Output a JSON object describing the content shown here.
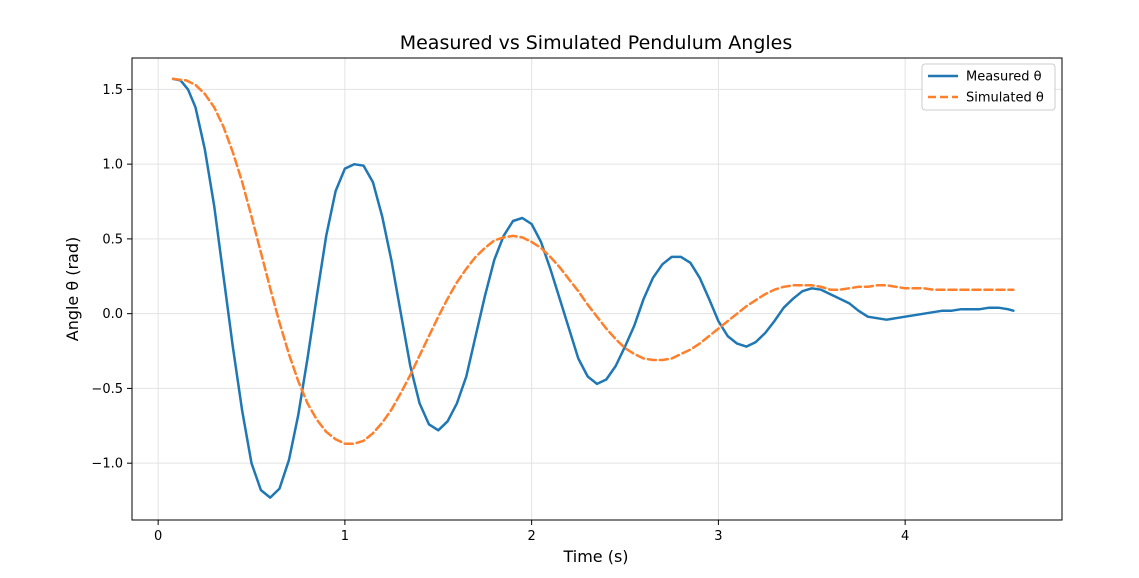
{
  "chart_data": {
    "type": "line",
    "title": "Measured vs Simulated Pendulum Angles",
    "xlabel": "Time (s)",
    "ylabel": "Angle θ (rad)",
    "xlim": [
      -0.14,
      4.84
    ],
    "ylim": [
      -1.38,
      1.71
    ],
    "xticks": [
      0,
      1,
      2,
      3,
      4
    ],
    "xtick_labels": [
      "0",
      "1",
      "2",
      "3",
      "4"
    ],
    "yticks": [
      -1.0,
      -0.5,
      0.0,
      0.5,
      1.0,
      1.5
    ],
    "ytick_labels": [
      "−1.0",
      "−0.5",
      "0.0",
      "0.5",
      "1.0",
      "1.5"
    ],
    "grid": true,
    "legend_position": "upper right",
    "series": [
      {
        "name": "Measured θ",
        "color": "#1f77b4",
        "style": "solid",
        "x": [
          0.08,
          0.12,
          0.16,
          0.2,
          0.25,
          0.3,
          0.35,
          0.4,
          0.45,
          0.5,
          0.55,
          0.6,
          0.65,
          0.7,
          0.75,
          0.8,
          0.85,
          0.9,
          0.95,
          1.0,
          1.05,
          1.1,
          1.15,
          1.2,
          1.25,
          1.3,
          1.35,
          1.4,
          1.45,
          1.5,
          1.55,
          1.6,
          1.65,
          1.7,
          1.75,
          1.8,
          1.85,
          1.9,
          1.95,
          2.0,
          2.05,
          2.1,
          2.15,
          2.2,
          2.25,
          2.3,
          2.35,
          2.4,
          2.45,
          2.5,
          2.55,
          2.6,
          2.65,
          2.7,
          2.75,
          2.8,
          2.85,
          2.9,
          2.95,
          3.0,
          3.05,
          3.1,
          3.15,
          3.2,
          3.25,
          3.3,
          3.35,
          3.4,
          3.45,
          3.5,
          3.55,
          3.6,
          3.65,
          3.7,
          3.75,
          3.8,
          3.85,
          3.9,
          3.95,
          4.0,
          4.05,
          4.1,
          4.15,
          4.2,
          4.25,
          4.3,
          4.35,
          4.4,
          4.45,
          4.5,
          4.55,
          4.58
        ],
        "y": [
          1.57,
          1.56,
          1.5,
          1.38,
          1.1,
          0.72,
          0.25,
          -0.22,
          -0.65,
          -1.0,
          -1.18,
          -1.23,
          -1.17,
          -0.98,
          -0.68,
          -0.3,
          0.12,
          0.52,
          0.82,
          0.97,
          1.0,
          0.99,
          0.88,
          0.65,
          0.35,
          0.0,
          -0.35,
          -0.6,
          -0.74,
          -0.78,
          -0.72,
          -0.6,
          -0.42,
          -0.15,
          0.12,
          0.36,
          0.52,
          0.62,
          0.64,
          0.6,
          0.48,
          0.3,
          0.1,
          -0.1,
          -0.3,
          -0.42,
          -0.47,
          -0.44,
          -0.35,
          -0.22,
          -0.08,
          0.1,
          0.24,
          0.33,
          0.38,
          0.38,
          0.34,
          0.24,
          0.1,
          -0.05,
          -0.15,
          -0.2,
          -0.22,
          -0.19,
          -0.13,
          -0.05,
          0.04,
          0.1,
          0.15,
          0.17,
          0.16,
          0.13,
          0.1,
          0.07,
          0.02,
          -0.02,
          -0.03,
          -0.04,
          -0.03,
          -0.02,
          -0.01,
          0.0,
          0.01,
          0.02,
          0.02,
          0.03,
          0.03,
          0.03,
          0.04,
          0.04,
          0.03,
          0.02
        ]
      },
      {
        "name": "Simulated θ",
        "color": "#ff7f2a",
        "style": "dashed",
        "x": [
          0.08,
          0.15,
          0.2,
          0.25,
          0.3,
          0.35,
          0.4,
          0.45,
          0.5,
          0.55,
          0.6,
          0.65,
          0.7,
          0.75,
          0.8,
          0.85,
          0.9,
          0.95,
          1.0,
          1.05,
          1.1,
          1.15,
          1.2,
          1.25,
          1.3,
          1.35,
          1.4,
          1.45,
          1.5,
          1.55,
          1.6,
          1.65,
          1.7,
          1.75,
          1.8,
          1.85,
          1.9,
          1.95,
          2.0,
          2.05,
          2.1,
          2.15,
          2.2,
          2.25,
          2.3,
          2.35,
          2.4,
          2.45,
          2.5,
          2.55,
          2.6,
          2.65,
          2.7,
          2.75,
          2.8,
          2.85,
          2.9,
          2.95,
          3.0,
          3.05,
          3.1,
          3.15,
          3.2,
          3.25,
          3.3,
          3.35,
          3.4,
          3.45,
          3.5,
          3.55,
          3.6,
          3.65,
          3.7,
          3.75,
          3.8,
          3.85,
          3.9,
          3.95,
          4.0,
          4.05,
          4.1,
          4.15,
          4.2,
          4.25,
          4.3,
          4.35,
          4.4,
          4.45,
          4.5,
          4.55,
          4.58
        ],
        "y": [
          1.57,
          1.56,
          1.53,
          1.47,
          1.38,
          1.25,
          1.08,
          0.88,
          0.65,
          0.41,
          0.17,
          -0.06,
          -0.27,
          -0.45,
          -0.6,
          -0.71,
          -0.79,
          -0.84,
          -0.87,
          -0.87,
          -0.85,
          -0.8,
          -0.73,
          -0.64,
          -0.53,
          -0.41,
          -0.28,
          -0.15,
          -0.02,
          0.1,
          0.21,
          0.3,
          0.38,
          0.44,
          0.49,
          0.51,
          0.52,
          0.51,
          0.48,
          0.44,
          0.38,
          0.31,
          0.23,
          0.15,
          0.06,
          -0.02,
          -0.1,
          -0.17,
          -0.23,
          -0.27,
          -0.3,
          -0.31,
          -0.31,
          -0.3,
          -0.27,
          -0.24,
          -0.2,
          -0.15,
          -0.1,
          -0.05,
          0.0,
          0.05,
          0.09,
          0.13,
          0.16,
          0.18,
          0.19,
          0.19,
          0.19,
          0.18,
          0.16,
          0.16,
          0.17,
          0.18,
          0.18,
          0.19,
          0.19,
          0.18,
          0.17,
          0.17,
          0.17,
          0.16,
          0.16,
          0.16,
          0.16,
          0.16,
          0.16,
          0.16,
          0.16,
          0.16,
          0.16
        ]
      }
    ]
  }
}
